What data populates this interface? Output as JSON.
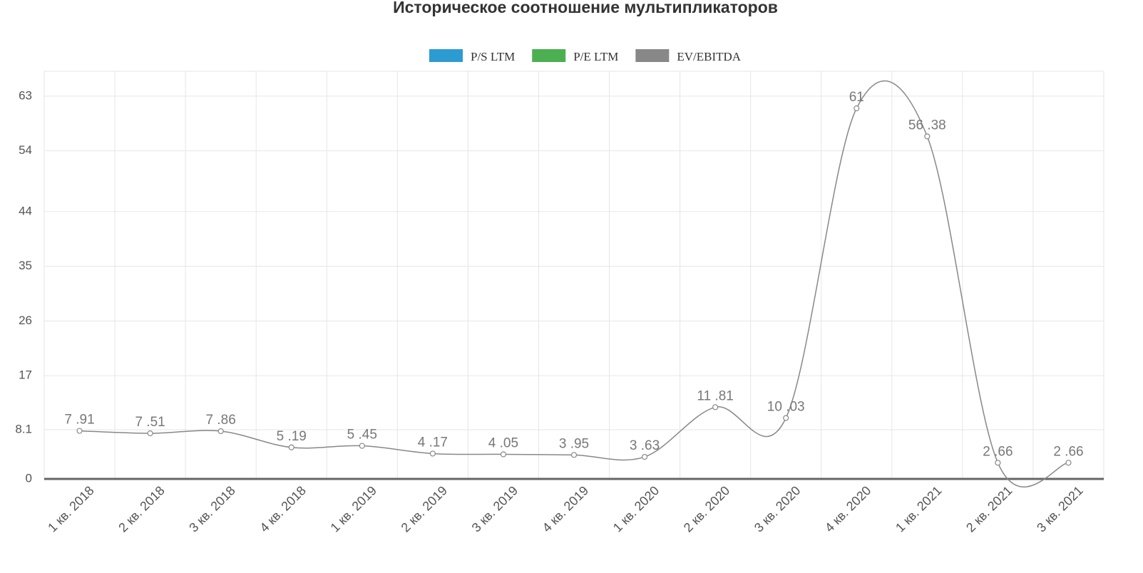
{
  "chart_data": {
    "type": "line",
    "title": "Историческое соотношение мультипликаторов",
    "categories": [
      "1 кв. 2018",
      "2 кв. 2018",
      "3 кв. 2018",
      "4 кв. 2018",
      "1 кв. 2019",
      "2 кв. 2019",
      "3 кв. 2019",
      "4 кв. 2019",
      "1 кв. 2020",
      "2 кв. 2020",
      "3 кв. 2020",
      "4 кв. 2020",
      "1 кв. 2021",
      "2 кв. 2021",
      "3 кв. 2021"
    ],
    "series": [
      {
        "name": "P/S LTM",
        "color": "#2b9bd1",
        "values": [
          null,
          null,
          null,
          null,
          null,
          null,
          null,
          null,
          null,
          null,
          null,
          null,
          null,
          null,
          null
        ]
      },
      {
        "name": "P/E LTM",
        "color": "#4caf50",
        "values": [
          null,
          null,
          null,
          null,
          null,
          null,
          null,
          null,
          null,
          null,
          null,
          null,
          null,
          null,
          null
        ]
      },
      {
        "name": "EV/EBITDA",
        "color": "#888888",
        "values": [
          7.91,
          7.51,
          7.86,
          5.19,
          5.45,
          4.17,
          4.05,
          3.95,
          3.63,
          11.81,
          10.03,
          61,
          56.38,
          2.66,
          2.66
        ],
        "value_labels": [
          "7 .91",
          "7 .51",
          "7 .86",
          "5 .19",
          "5 .45",
          "4 .17",
          "4 .05",
          "3 .95",
          "3 .63",
          "11 .81",
          "10 .03",
          "61",
          "56 .38",
          "2 .66",
          "2 .66"
        ]
      }
    ],
    "ylim": [
      0,
      64.4
    ],
    "yticks": [
      0,
      8.1,
      17,
      26,
      35,
      44,
      54,
      63
    ],
    "grid": true,
    "legend": "top"
  }
}
